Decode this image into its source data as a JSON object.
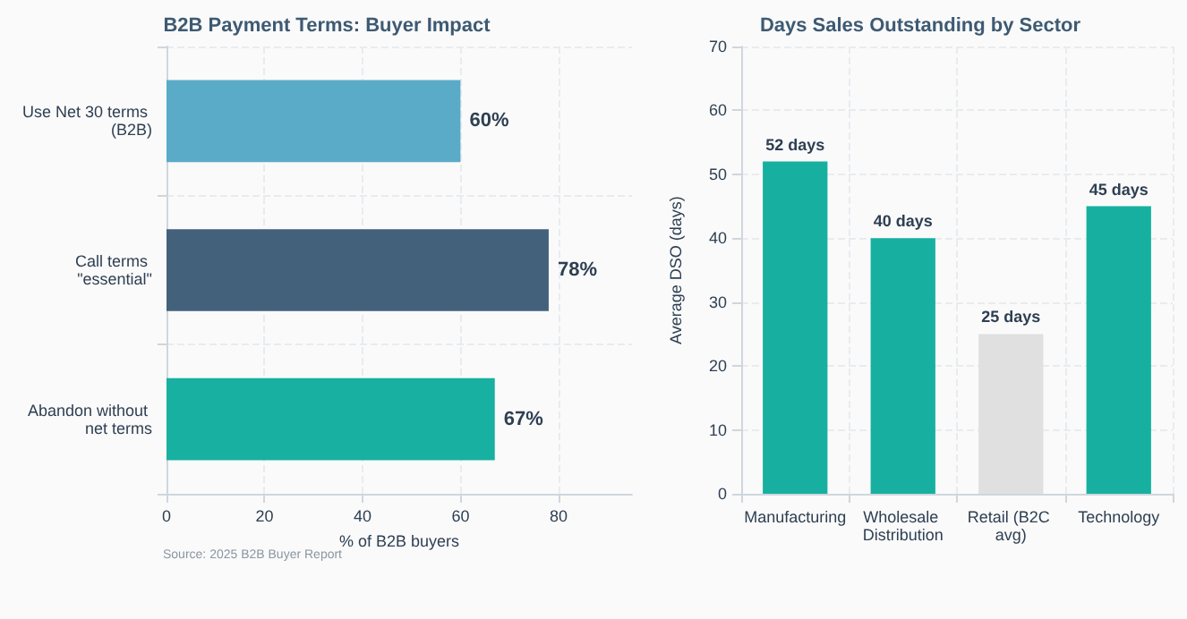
{
  "chart_data": [
    {
      "type": "bar",
      "title": "B2B Payment Terms: Buyer Impact",
      "orientation": "horizontal",
      "categories": [
        "Use Net 30 terms (B2B)",
        "Call terms \"essential\"",
        "Abandon without net terms"
      ],
      "values": [
        60,
        78,
        67
      ],
      "colors": [
        "#5aabc8",
        "#44617c",
        "#18b0a0"
      ],
      "value_labels": [
        "60%",
        "78%",
        "67%"
      ],
      "xlabel": "% of B2B buyers",
      "xlim": [
        0,
        95
      ],
      "xticks": [
        0,
        20,
        40,
        60,
        80
      ],
      "grid": true,
      "annotations": [
        "Source: 2025 B2B Buyer Report"
      ]
    },
    {
      "type": "bar",
      "title": "Days Sales Outstanding by Sector",
      "categories": [
        "Manufacturing",
        "Wholesale Distribution",
        "Retail (B2C avg)",
        "Technology"
      ],
      "values": [
        52,
        40,
        25,
        45
      ],
      "colors": [
        "#17b0a0",
        "#17b0a0",
        "#e0e0e0",
        "#17b0a0"
      ],
      "value_labels": [
        "52 days",
        "40 days",
        "25 days",
        "45 days"
      ],
      "ylabel": "Average DSO (days)",
      "ylim": [
        0,
        70
      ],
      "yticks": [
        0,
        10,
        20,
        30,
        40,
        50,
        60,
        70
      ],
      "grid": true
    }
  ]
}
